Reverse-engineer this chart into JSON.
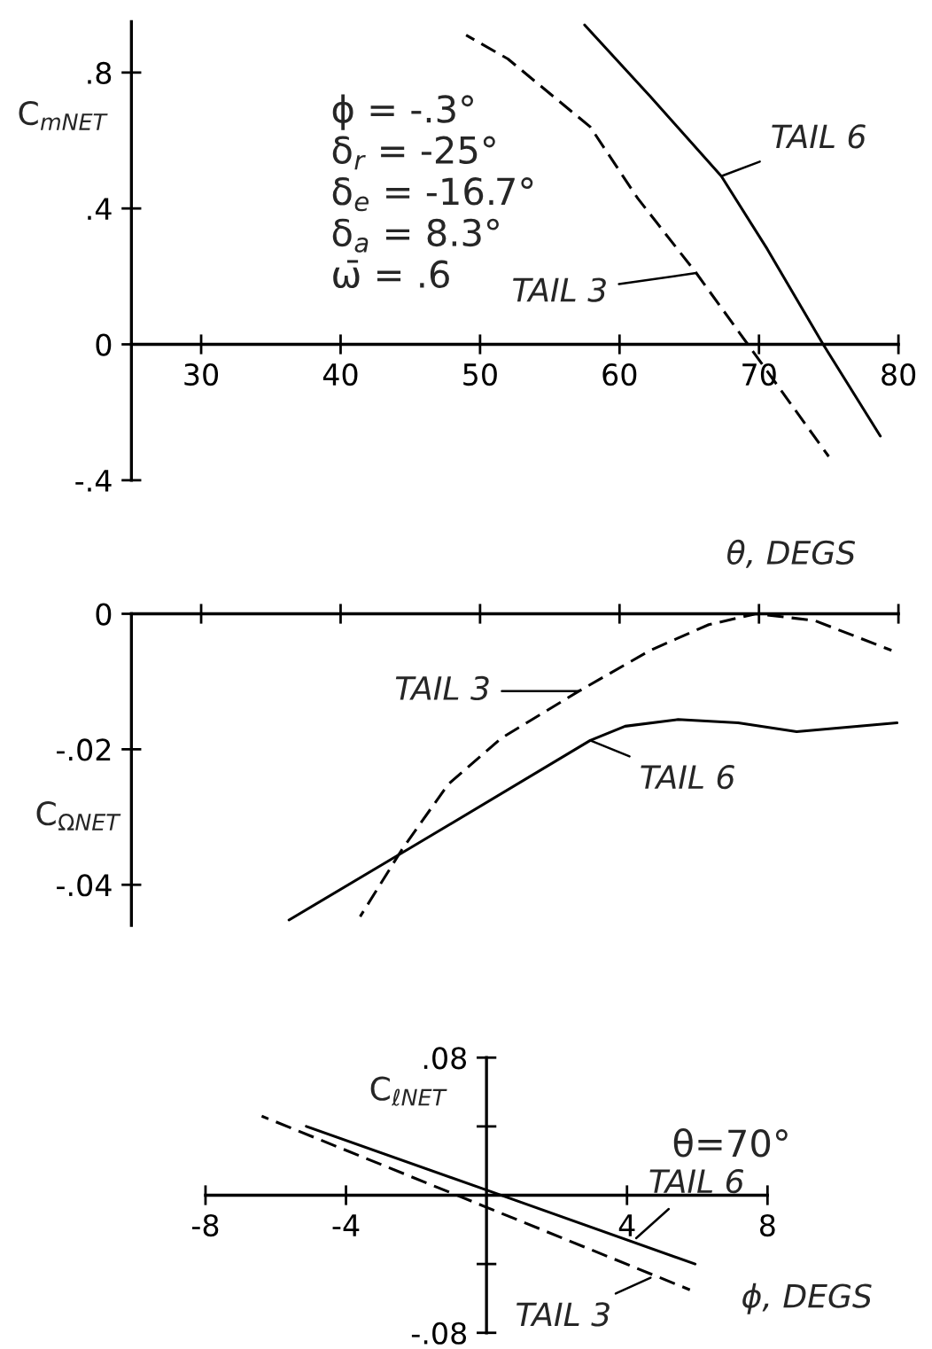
{
  "chart_data": [
    {
      "type": "line",
      "xlabel": "θ, DEGS",
      "ylabel": "C$_{mNET}$",
      "xlim": [
        25,
        80
      ],
      "xticks": [
        30,
        40,
        50,
        60,
        70,
        80
      ],
      "ylim": [
        -0.4,
        0.95
      ],
      "yticks": [
        {
          "value": 0.8,
          "label": ".8"
        },
        {
          "value": 0.4,
          "label": ".4"
        },
        0,
        {
          "value": -0.4,
          "label": "-.4"
        }
      ],
      "series": [
        {
          "color": "#000000",
          "line_style": "solid",
          "x": [
            57.5,
            62.2,
            67.3,
            70.6,
            74.6,
            78.7
          ],
          "values": [
            0.94,
            0.73,
            0.495,
            0.28,
            0,
            -0.27
          ]
        },
        {
          "color": "#000000",
          "line_style": "dashed",
          "x": [
            49,
            52,
            57.9,
            61.3,
            65.5,
            69.2,
            75
          ],
          "values": [
            0.91,
            0.84,
            0.64,
            0.43,
            0.21,
            0,
            -0.33
          ]
        }
      ],
      "annotations": [
        "ϕ = -.3°",
        "δ$_{r}$ = -25°",
        "δ$_{e}$ = -16.7°",
        "δ$_{a}$ = 8.3°",
        "ω̄ = .6",
        {
          "text": "TAIL 6",
          "x": 67.3,
          "y": 0.495
        },
        {
          "text": "TAIL 3",
          "x": 65.5,
          "y": 0.21
        }
      ],
      "grid": false
    },
    {
      "type": "line",
      "ylabel": "C$_{ΩNET}$",
      "xlim": [
        25,
        80
      ],
      "xticks": [
        30,
        40,
        50,
        60,
        70,
        80
      ],
      "ylim": [
        -0.046,
        0
      ],
      "yticks": [
        0,
        {
          "value": -0.02,
          "label": "-.02"
        },
        {
          "value": -0.04,
          "label": "-.04"
        }
      ],
      "tick_labels": "y",
      "series": [
        {
          "color": "#000000",
          "line_style": "dashed",
          "x": [
            41.4,
            44.4,
            47.7,
            51.5,
            57.1,
            62.2,
            66.4,
            69.8,
            74.0,
            79.5
          ],
          "values": [
            -0.0447,
            -0.0348,
            -0.0252,
            -0.0184,
            -0.0114,
            -0.0054,
            -0.0016,
            0,
            -0.001,
            -0.0054
          ]
        },
        {
          "color": "#000000",
          "line_style": "solid",
          "x": [
            36.3,
            44.4,
            57.9,
            60.4,
            64.2,
            68.5,
            72.7,
            79.9
          ],
          "values": [
            -0.0452,
            -0.0353,
            -0.0187,
            -0.0166,
            -0.0156,
            -0.0161,
            -0.0174,
            -0.0161
          ]
        }
      ],
      "annotations": [
        {
          "text": "TAIL 3",
          "x": 57.1,
          "y": -0.0114
        },
        {
          "text": "TAIL 6",
          "x": 57.9,
          "y": -0.0187
        }
      ],
      "grid": false
    },
    {
      "type": "line",
      "xlabel": "ϕ, DEGS",
      "ylabel": "C$_{ℓNET}$",
      "xlim": [
        -8,
        8
      ],
      "xticks": [
        -8,
        -4,
        4,
        8
      ],
      "ylim": [
        -0.08,
        0.08
      ],
      "yticks": [
        {
          "value": 0.08,
          "label": ".08"
        },
        {
          "value": 0.04,
          "label": null
        },
        {
          "value": -0.04,
          "label": null
        },
        {
          "value": -0.08,
          "label": "-.08"
        }
      ],
      "series": [
        {
          "color": "#000000",
          "line_style": "solid",
          "x": [
            -5.13,
            0,
            5.94
          ],
          "values": [
            0.04,
            0.003,
            -0.04
          ]
        },
        {
          "color": "#000000",
          "line_style": "dashed",
          "x": [
            -6.4,
            0,
            5.79
          ],
          "values": [
            0.046,
            -0.007,
            -0.055
          ]
        }
      ],
      "annotations": [
        "θ=70°",
        {
          "text": "TAIL 6",
          "x": 4.26,
          "y": -0.025
        },
        {
          "text": "TAIL 3",
          "x": 4.67,
          "y": -0.048
        }
      ],
      "grid": false
    }
  ]
}
